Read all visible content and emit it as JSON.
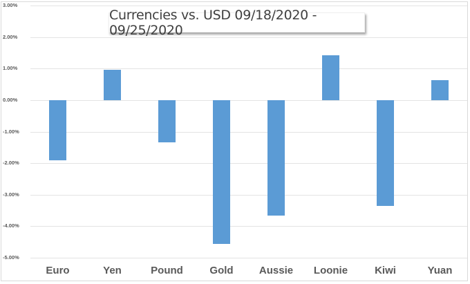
{
  "chart_data": {
    "type": "bar",
    "title": "Currencies vs. USD 09/18/2020 - 09/25/2020",
    "xlabel": "",
    "ylabel": "",
    "categories": [
      "Euro",
      "Yen",
      "Pound",
      "Gold",
      "Aussie",
      "Loonie",
      "Kiwi",
      "Yuan"
    ],
    "values": [
      -1.91,
      0.97,
      -1.34,
      -4.55,
      -3.65,
      1.43,
      -3.36,
      0.64
    ],
    "unit": "%",
    "ylim": [
      -5.0,
      3.0
    ],
    "yticks": [
      "3.00%",
      "2.00%",
      "1.00%",
      "0.00%",
      "-1.00%",
      "-2.00%",
      "-3.00%",
      "-4.00%",
      "-5.00%"
    ],
    "grid": true,
    "legend": "none",
    "bar_color": "#5b9bd5"
  }
}
